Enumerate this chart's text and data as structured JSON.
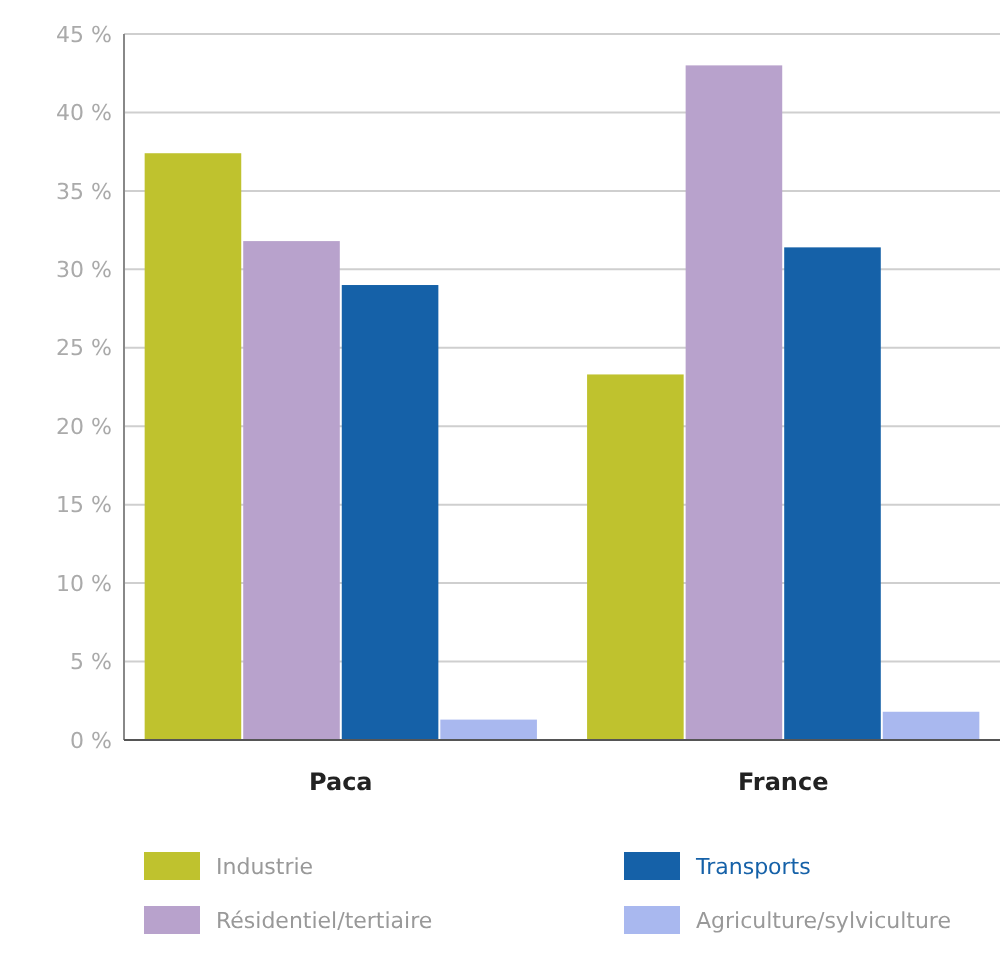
{
  "chart_data": {
    "type": "bar",
    "categories": [
      "Paca",
      "France"
    ],
    "series": [
      {
        "name": "Industrie",
        "color": "#bfc22e",
        "values": [
          37.4,
          23.3
        ]
      },
      {
        "name": "Résidentiel/tertiaire",
        "color": "#b8a2cc",
        "values": [
          31.8,
          43
        ]
      },
      {
        "name": "Transports",
        "color": "#1561a8",
        "values": [
          29,
          31.4
        ]
      },
      {
        "name": "Agriculture/sylviculture",
        "color": "#a9b8ef",
        "values": [
          1.3,
          1.8
        ]
      }
    ],
    "ylim": [
      0,
      45
    ],
    "yticks": [
      {
        "value": 0,
        "label": "0 %"
      },
      {
        "value": 5,
        "label": "5 %"
      },
      {
        "value": 10,
        "label": "10 %"
      },
      {
        "value": 15,
        "label": "15 %"
      },
      {
        "value": 20,
        "label": "20 %"
      },
      {
        "value": 25,
        "label": "25 %"
      },
      {
        "value": 30,
        "label": "30 %"
      },
      {
        "value": 35,
        "label": "35 %"
      },
      {
        "value": 40,
        "label": "40 %"
      },
      {
        "value": 45,
        "label": "45 %"
      }
    ],
    "grid": "y",
    "legend": "bottom"
  }
}
